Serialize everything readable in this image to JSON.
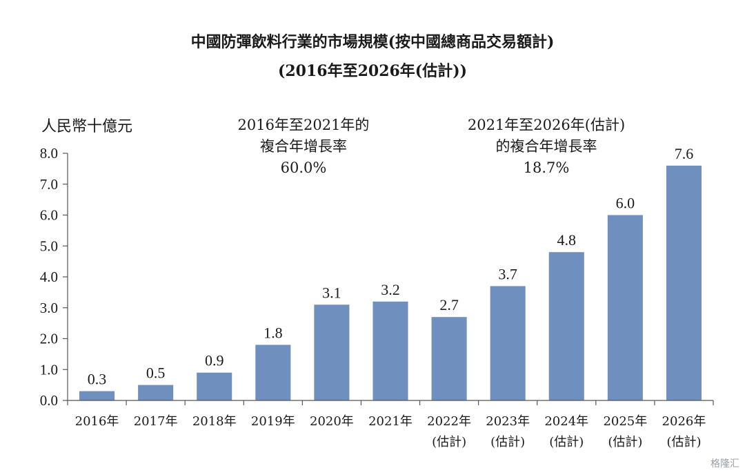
{
  "chart_data": {
    "type": "bar",
    "title": "中國防彈飲料行業的市場規模(按中國總商品交易額計)",
    "subtitle": "(2016年至2026年(估計))",
    "ylabel": "人民幣十億元",
    "ylim": [
      0,
      8
    ],
    "yticks": [
      "0.0",
      "1.0",
      "2.0",
      "3.0",
      "4.0",
      "5.0",
      "6.0",
      "7.0",
      "8.0"
    ],
    "categories": [
      [
        "2016年"
      ],
      [
        "2017年"
      ],
      [
        "2018年"
      ],
      [
        "2019年"
      ],
      [
        "2020年"
      ],
      [
        "2021年"
      ],
      [
        "2022年",
        "(估計)"
      ],
      [
        "2023年",
        "(估計)"
      ],
      [
        "2024年",
        "(估計)"
      ],
      [
        "2025年",
        "(估計)"
      ],
      [
        "2026年",
        "(估計)"
      ]
    ],
    "values": [
      0.3,
      0.5,
      0.9,
      1.8,
      3.1,
      3.2,
      2.7,
      3.7,
      4.8,
      6.0,
      7.6
    ],
    "value_labels": [
      "0.3",
      "0.5",
      "0.9",
      "1.8",
      "3.1",
      "3.2",
      "2.7",
      "3.7",
      "4.8",
      "6.0",
      "7.6"
    ],
    "bar_color": "#6f8fbf",
    "annotations": [
      {
        "lines": [
          "2016年至2021年的",
          "複合年增長率",
          "60.0%"
        ]
      },
      {
        "lines": [
          "2021年至2026年(估計)",
          "的複合年增長率",
          "18.7%"
        ]
      }
    ]
  },
  "watermark": "格隆汇"
}
